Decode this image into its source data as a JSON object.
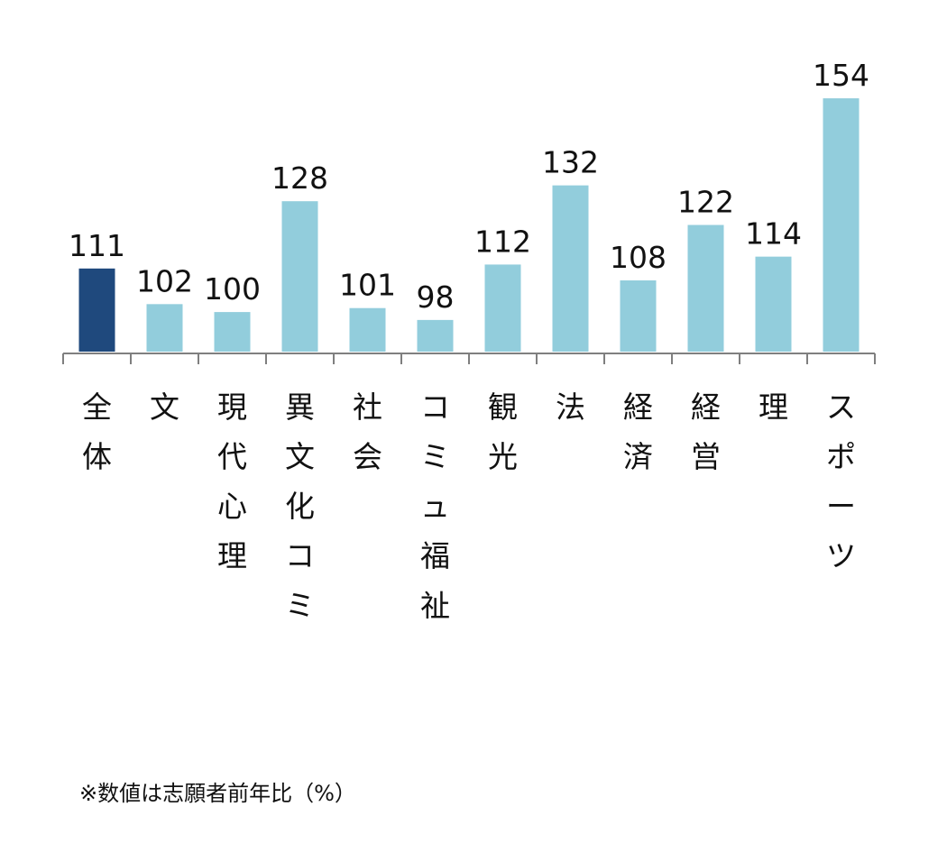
{
  "chart_data": {
    "type": "bar",
    "categories": [
      "全体",
      "文",
      "現代心理",
      "異文化コミ",
      "社会",
      "コミュ福祉",
      "観光",
      "法",
      "経済",
      "経営",
      "理",
      "スポーツ"
    ],
    "values": [
      111,
      102,
      100,
      128,
      101,
      98,
      112,
      132,
      108,
      122,
      114,
      154
    ],
    "highlight_index": 0,
    "colors": {
      "highlight": "#1F497D",
      "bar": "#92CDDC",
      "axis": "#7f7f7f"
    },
    "ylim": [
      90,
      160
    ],
    "grid": false,
    "legend": "none",
    "title": "",
    "xlabel": "",
    "ylabel": ""
  },
  "footnote": "※数値は志願者前年比（%）"
}
